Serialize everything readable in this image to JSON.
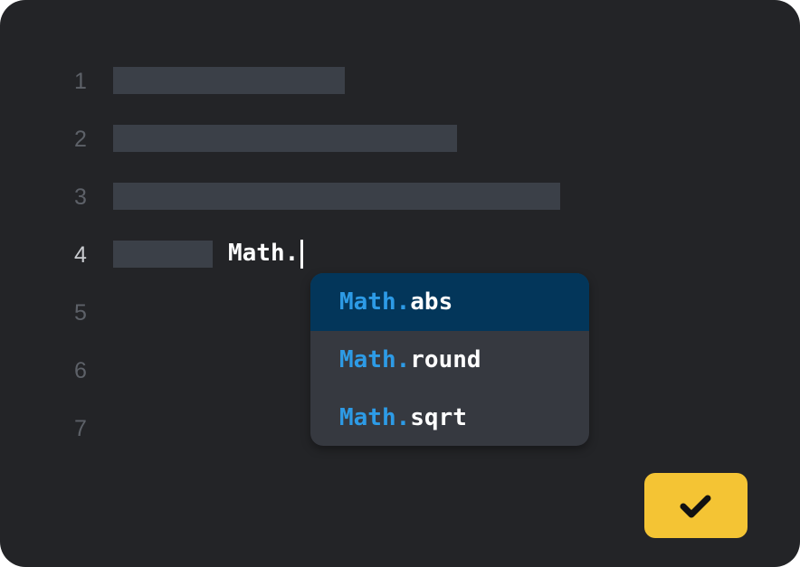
{
  "editor": {
    "line_numbers": [
      "1",
      "2",
      "3",
      "4",
      "5",
      "6",
      "7"
    ],
    "active_line": "4",
    "typed_text": "Math."
  },
  "autocomplete": {
    "items": [
      {
        "prefix": "Math.",
        "suffix": "abs",
        "selected": true
      },
      {
        "prefix": "Math.",
        "suffix": "round",
        "selected": false
      },
      {
        "prefix": "Math.",
        "suffix": "sqrt",
        "selected": false
      }
    ]
  },
  "confirm_button": {
    "icon": "check-icon",
    "color": "#f4c434"
  },
  "colors": {
    "background": "#232427",
    "placeholder_bar": "#3b4048",
    "menu": "#363940",
    "menu_selected": "#03365a",
    "prefix": "#2d9be6"
  }
}
